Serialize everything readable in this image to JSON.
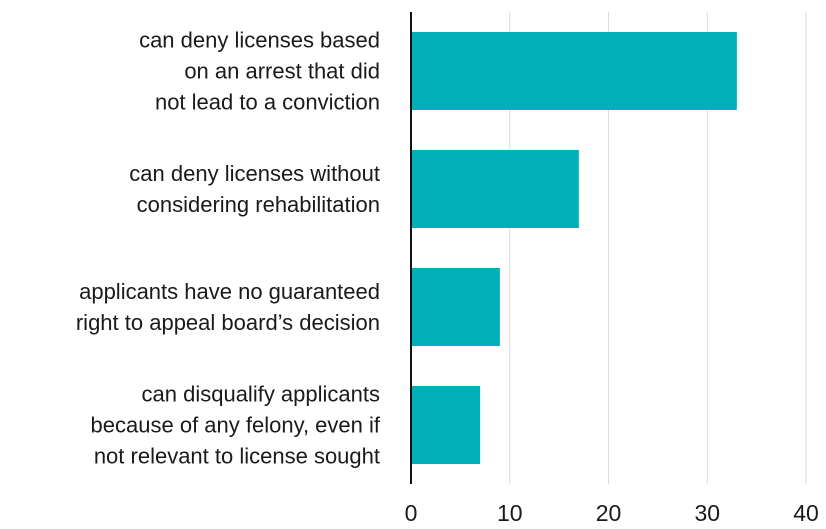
{
  "chart_data": {
    "type": "bar",
    "orientation": "horizontal",
    "categories": [
      "can deny licenses based\non an arrest that did\nnot lead to a conviction",
      "can deny licenses without\nconsidering rehabilitation",
      "applicants have no guaranteed\nright to appeal board’s decision",
      "can disqualify applicants\nbecause of any felony, even if\nnot relevant to license sought"
    ],
    "values": [
      33,
      17,
      9,
      7
    ],
    "color": "#00b0b9",
    "xlim": [
      0,
      40
    ],
    "xticks": [
      0,
      10,
      20,
      30,
      40
    ],
    "grid": true
  }
}
